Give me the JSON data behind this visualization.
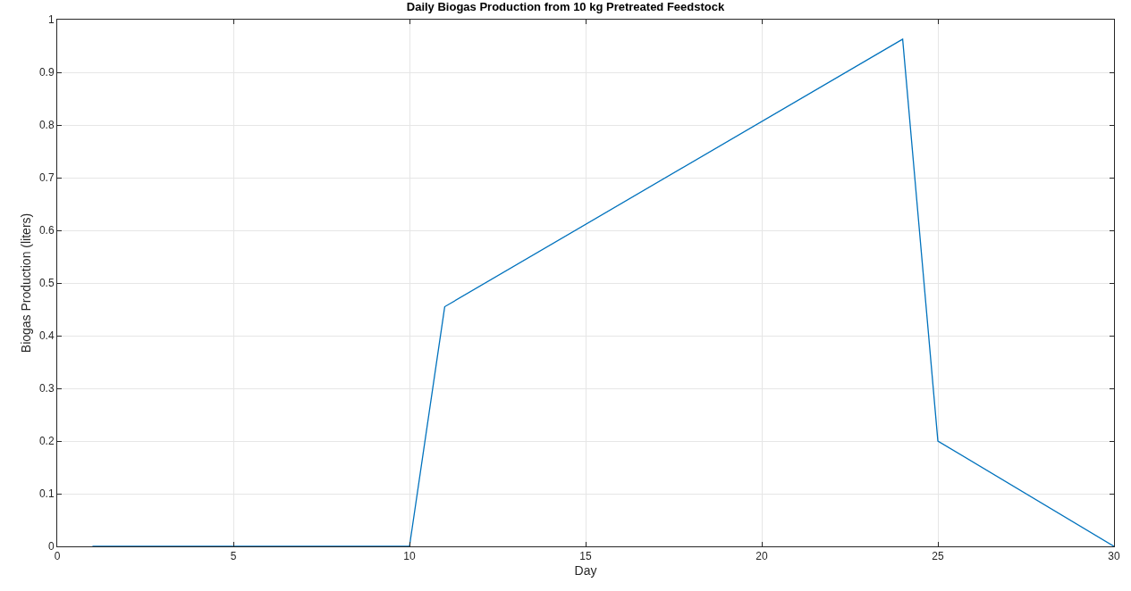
{
  "chart_data": {
    "type": "line",
    "title": "Daily Biogas Production from 10 kg Pretreated Feedstock",
    "xlabel": "Day",
    "ylabel": "Biogas Production (liters)",
    "x": [
      1,
      10,
      11,
      24,
      25,
      30
    ],
    "series": [
      {
        "color": "#0072bd",
        "values": [
          0,
          0,
          0.455,
          0.963,
          0.2,
          0
        ]
      }
    ],
    "xlim": [
      0,
      30
    ],
    "xticks": [
      0,
      5,
      10,
      15,
      20,
      25,
      30
    ],
    "ylim": [
      0,
      1
    ],
    "yticks": [
      0,
      0.1,
      0.2,
      0.3,
      0.4,
      0.5,
      0.6,
      0.7,
      0.8,
      0.9,
      1
    ],
    "grid": true,
    "marker": "none",
    "line_style": "solid"
  }
}
